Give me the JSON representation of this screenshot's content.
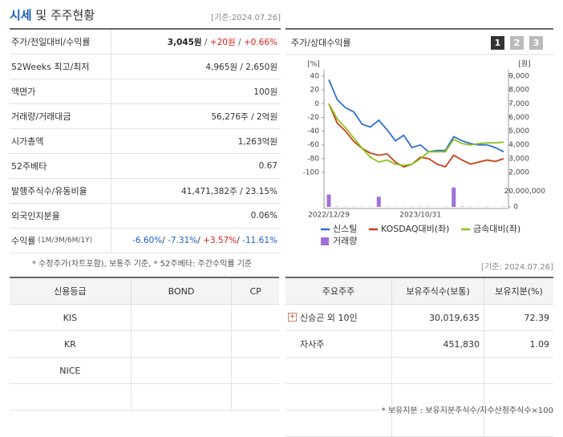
{
  "header": {
    "title": "시세",
    "subtitle": "및 주주현황",
    "date": "[기준:2024.07.26]"
  },
  "price_table": {
    "rows": [
      {
        "label": "주가/전일대비/수익률",
        "value": [
          {
            "text": "3,045원",
            "color": "#222222"
          },
          {
            "text": " / ",
            "color": "#555555"
          },
          {
            "text": "+20원",
            "color": "#e0201c"
          },
          {
            "text": " / ",
            "color": "#555555"
          },
          {
            "text": "+0.66%",
            "color": "#e0201c"
          }
        ]
      },
      {
        "label": "52Weeks 최고/최저",
        "value": [
          {
            "text": "4,965원 / 2,650원",
            "color": "#333333"
          }
        ]
      },
      {
        "label": "액면가",
        "value": [
          {
            "text": "100원",
            "color": "#333333"
          }
        ]
      },
      {
        "label": "거래량/거래대금",
        "value": [
          {
            "text": "56,276주 / 2억원",
            "color": "#333333"
          }
        ]
      },
      {
        "label": "시가총액",
        "value": [
          {
            "text": "1,263억원",
            "color": "#333333"
          }
        ]
      },
      {
        "label": "52주베타",
        "value": [
          {
            "text": "0.67",
            "color": "#333333"
          }
        ]
      },
      {
        "label": "발행주식수/유동비율",
        "value": [
          {
            "text": "41,471,382주 / 23.15%",
            "color": "#333333"
          }
        ]
      },
      {
        "label": "외국인지분율",
        "value": [
          {
            "text": "0.06%",
            "color": "#333333"
          }
        ]
      },
      {
        "label": "수익률",
        "label_note": "(1M/3M/6M/1Y)",
        "value": [
          {
            "text": "-6.60%",
            "color": "#1a5fc8"
          },
          {
            "text": "/ ",
            "color": "#333333"
          },
          {
            "text": "-7.31%",
            "color": "#1a5fc8"
          },
          {
            "text": "/ ",
            "color": "#333333"
          },
          {
            "text": "+3.57%",
            "color": "#e0201c"
          },
          {
            "text": "/ ",
            "color": "#333333"
          },
          {
            "text": "-11.61%",
            "color": "#1a5fc8"
          }
        ]
      }
    ],
    "footnote": "* 수정주가(차트포함), 보통주 기준, * 52주베타: 주간수익률 기준"
  },
  "chart_data": {
    "type": "line",
    "title": "주가/상대수익률",
    "tabs": [
      "1",
      "2",
      "3"
    ],
    "y_label": "[%]",
    "y2_label": "[원]",
    "categories": [
      "2022/12/29",
      null,
      null,
      null,
      null,
      null,
      null,
      null,
      null,
      null,
      null,
      "2023/10/31",
      null,
      null,
      null,
      null,
      null,
      null,
      null,
      null,
      null,
      null
    ],
    "ylim": [
      -100,
      40
    ],
    "yticks": [
      40,
      20,
      0,
      -20,
      -40,
      -60,
      -80,
      -100
    ],
    "y2lim": [
      2000,
      9000
    ],
    "y2ticks": [
      {
        "value": 9000,
        "label": "9,000"
      },
      {
        "value": 8000,
        "label": "8,000"
      },
      {
        "value": 7000,
        "label": "7,000"
      },
      {
        "value": 6000,
        "label": "6,000"
      },
      {
        "value": 5000,
        "label": "5,000"
      },
      {
        "value": 4000,
        "label": "4,000"
      },
      {
        "value": 3000,
        "label": "3,000"
      },
      {
        "value": 2000,
        "label": "2,000"
      }
    ],
    "vlim": [
      0,
      29000000
    ],
    "vticks": [
      {
        "value": 20000000,
        "label": "20,000,000"
      },
      0
    ],
    "series": [
      {
        "name": "신스틸",
        "color": "#2f6fd0",
        "axis": "y2",
        "values": [
          8750,
          7300,
          6700,
          6400,
          5500,
          5300,
          5800,
          5100,
          4300,
          4700,
          3800,
          4000,
          3500,
          3600,
          3600,
          4600,
          4300,
          4100,
          4000,
          4000,
          3800,
          3500
        ]
      },
      {
        "name": "KOSDAQ대비(좌)",
        "color": "#c8401a",
        "values": [
          0,
          -28,
          -40,
          -55,
          -65,
          -72,
          -75,
          -73,
          -85,
          -92,
          -88,
          -78,
          -80,
          -88,
          -92,
          -75,
          -82,
          -88,
          -85,
          -82,
          -84,
          -80
        ]
      },
      {
        "name": "금속대비(좌)",
        "color": "#8cc21e",
        "values": [
          0,
          -22,
          -35,
          -50,
          -65,
          -78,
          -85,
          -82,
          -88,
          -90,
          -88,
          -80,
          -70,
          -70,
          -70,
          -52,
          -58,
          -60,
          -58,
          -57,
          -57,
          -56
        ]
      },
      {
        "name": "거래량",
        "color": "#a070d8",
        "type": "bar",
        "axis": "volume",
        "values": [
          16000000,
          400000,
          300000,
          300000,
          200000,
          300000,
          13000000,
          300000,
          200000,
          200000,
          300000,
          400000,
          300000,
          200000,
          300000,
          25000000,
          500000,
          300000,
          200000,
          300000,
          200000,
          300000
        ]
      }
    ]
  },
  "date2": "[기준: 2024.07.26]",
  "credit_table": {
    "headers": [
      "신용등급",
      "BOND",
      "CP"
    ],
    "rows": [
      "KIS",
      "KR",
      "NICE"
    ]
  },
  "holders_table": {
    "headers": [
      "주요주주",
      "보유주식수(보통)",
      "보유지분(%)"
    ],
    "rows": [
      [
        "신승곤 외 10인",
        "30,019,635",
        "72.39"
      ],
      [
        "자사주",
        "451,830",
        "1.09"
      ]
    ]
  },
  "footnote2": "* 보유지분 : 보유지분주식수/지수산정주식수×100"
}
